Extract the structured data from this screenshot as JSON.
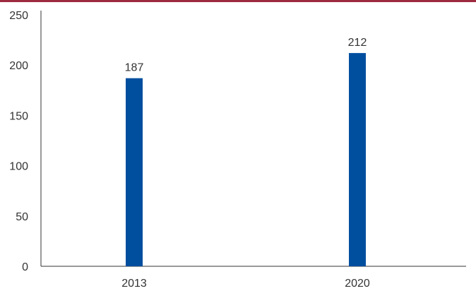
{
  "chart_data": {
    "type": "bar",
    "categories": [
      "2013",
      "2020"
    ],
    "values": [
      187,
      212
    ],
    "data_labels": [
      "187",
      "212"
    ],
    "title": "",
    "xlabel": "",
    "ylabel": "",
    "ylim": [
      0,
      250
    ],
    "yticks": [
      "0",
      "50",
      "100",
      "150",
      "200",
      "250"
    ],
    "grid": false,
    "legend": false
  },
  "colors": {
    "bar": "#004f9f",
    "axis": "#333333",
    "top_rule": "#9e2a3f"
  }
}
